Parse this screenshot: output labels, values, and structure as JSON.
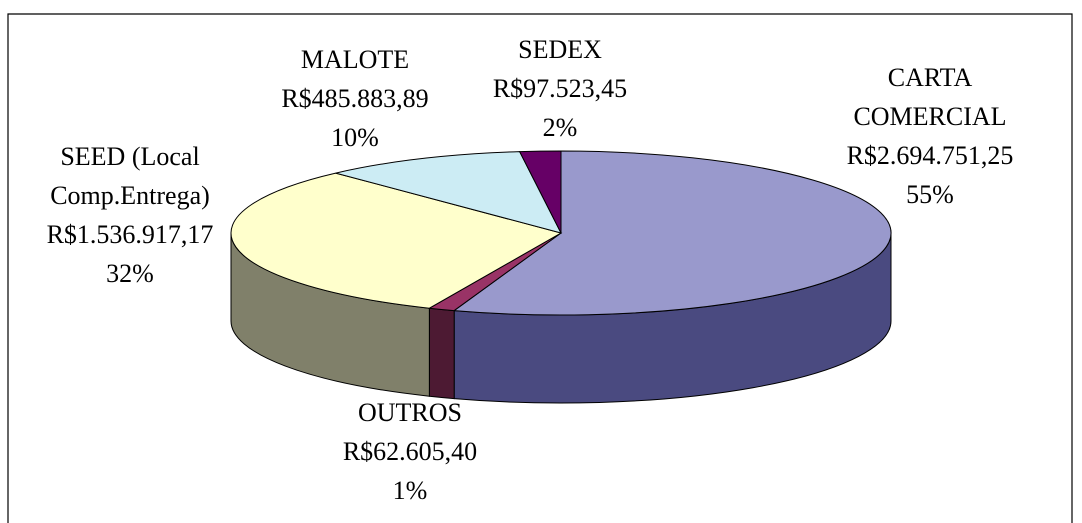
{
  "chart_data": {
    "type": "pie3d",
    "categories": [
      "CARTA COMERCIAL",
      "OUTROS",
      "SEED (Local Comp.Entrega)",
      "MALOTE",
      "SEDEX"
    ],
    "values": [
      2694751.25,
      62605.4,
      1536917.17,
      485883.89,
      97523.45
    ],
    "value_labels": [
      "R$2.694.751,25",
      "R$62.605,40",
      "R$1.536.917,17",
      "R$485.883,89",
      "R$97.523,45"
    ],
    "percents": [
      55,
      1,
      32,
      10,
      2
    ],
    "percent_labels": [
      "55%",
      "1%",
      "32%",
      "10%",
      "2%"
    ],
    "colors": [
      "#9999cc",
      "#993366",
      "#ffffcc",
      "#ccecf4",
      "#660066"
    ],
    "side_colors": [
      "#4a4a80",
      "#4d1a33",
      "#80806a",
      "#6a7a80",
      "#330033"
    ]
  }
}
